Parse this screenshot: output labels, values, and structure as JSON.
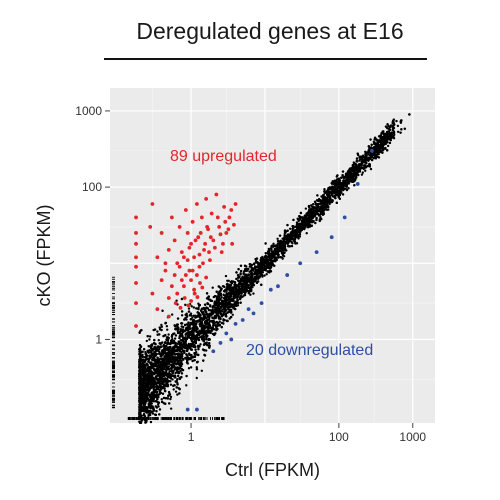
{
  "chart_data": {
    "type": "scatter",
    "title": "Deregulated genes at E16",
    "xlabel": "Ctrl (FPKM)",
    "ylabel": "cKO (FPKM)",
    "x_scale": "log10",
    "y_scale": "log10",
    "xlim": [
      0.08,
      2000
    ],
    "ylim": [
      0.08,
      2000
    ],
    "x_ticks": [
      1,
      100,
      1000
    ],
    "x_tick_labels": [
      "1",
      "100",
      "1000"
    ],
    "y_ticks": [
      1,
      100,
      1000
    ],
    "y_tick_labels": [
      "1",
      "100",
      "1000"
    ],
    "grid": true,
    "background": "#ebebeb",
    "annotations": [
      {
        "text": "89 upregulated",
        "color": "#e3262b",
        "x": 1.0,
        "y": 400
      },
      {
        "text": "20 downregulated",
        "color": "#2e4fa3",
        "x": 10,
        "y": 1.0
      }
    ],
    "series": [
      {
        "color": "#000000",
        "count": 7000
      },
      {
        "color": "#e3262b",
        "count": 89,
        "points": [
          [
            0.18,
            1.5
          ],
          [
            0.18,
            3.0
          ],
          [
            0.18,
            5.5
          ],
          [
            0.18,
            9.0
          ],
          [
            0.18,
            12
          ],
          [
            0.18,
            18
          ],
          [
            0.18,
            25
          ],
          [
            0.18,
            40
          ],
          [
            0.28,
            30
          ],
          [
            0.3,
            60
          ],
          [
            0.35,
            12
          ],
          [
            0.4,
            25
          ],
          [
            0.45,
            8
          ],
          [
            0.5,
            15
          ],
          [
            0.55,
            40
          ],
          [
            0.6,
            20
          ],
          [
            0.65,
            10
          ],
          [
            0.7,
            30
          ],
          [
            0.75,
            6
          ],
          [
            0.8,
            12
          ],
          [
            0.85,
            50
          ],
          [
            0.9,
            25
          ],
          [
            0.95,
            8
          ],
          [
            1.0,
            18
          ],
          [
            1.05,
            35
          ],
          [
            1.1,
            12
          ],
          [
            1.2,
            60
          ],
          [
            1.25,
            22
          ],
          [
            1.3,
            9
          ],
          [
            1.4,
            40
          ],
          [
            1.5,
            15
          ],
          [
            1.6,
            70
          ],
          [
            1.7,
            28
          ],
          [
            1.8,
            11
          ],
          [
            1.9,
            45
          ],
          [
            2.0,
            20
          ],
          [
            2.2,
            80
          ],
          [
            2.4,
            30
          ],
          [
            2.6,
            14
          ],
          [
            2.8,
            55
          ],
          [
            3.0,
            25
          ],
          [
            3.3,
            40
          ],
          [
            3.6,
            18
          ],
          [
            4.0,
            60
          ],
          [
            0.3,
            4
          ],
          [
            0.4,
            6
          ],
          [
            0.45,
            10
          ],
          [
            0.5,
            3.5
          ],
          [
            0.55,
            5
          ],
          [
            0.6,
            7
          ],
          [
            0.65,
            4
          ],
          [
            0.7,
            9
          ],
          [
            0.75,
            14
          ],
          [
            0.8,
            5
          ],
          [
            0.85,
            7
          ],
          [
            0.9,
            11
          ],
          [
            0.95,
            16
          ],
          [
            1.0,
            6
          ],
          [
            1.05,
            8
          ],
          [
            1.1,
            4.5
          ],
          [
            1.15,
            20
          ],
          [
            1.2,
            7
          ],
          [
            1.3,
            13
          ],
          [
            1.35,
            25
          ],
          [
            1.45,
            10
          ],
          [
            1.55,
            18
          ],
          [
            1.65,
            30
          ],
          [
            1.75,
            14
          ],
          [
            1.85,
            22
          ],
          [
            2.1,
            16
          ],
          [
            2.3,
            40
          ],
          [
            2.5,
            24
          ],
          [
            2.7,
            18
          ],
          [
            2.9,
            35
          ],
          [
            3.2,
            28
          ],
          [
            3.5,
            50
          ],
          [
            3.8,
            32
          ],
          [
            0.35,
            2.5
          ],
          [
            0.5,
            2.0
          ],
          [
            0.62,
            3.0
          ],
          [
            0.72,
            2.6
          ],
          [
            0.82,
            3.5
          ],
          [
            0.92,
            2.8
          ],
          [
            1.0,
            3.2
          ],
          [
            1.12,
            4.0
          ],
          [
            1.22,
            3.6
          ],
          [
            1.32,
            5.5
          ],
          [
            1.42,
            4.8
          ],
          [
            1.6,
            6.5
          ]
        ]
      },
      {
        "color": "#2e4fa3",
        "count": 20,
        "points": [
          [
            2.0,
            0.7
          ],
          [
            2.5,
            0.9
          ],
          [
            3.0,
            1.2
          ],
          [
            3.5,
            1.0
          ],
          [
            4.0,
            1.6
          ],
          [
            5.0,
            1.8
          ],
          [
            6.0,
            2.5
          ],
          [
            7.0,
            2.2
          ],
          [
            9.0,
            3.0
          ],
          [
            12,
            4.5
          ],
          [
            15,
            5.0
          ],
          [
            20,
            7.0
          ],
          [
            30,
            10
          ],
          [
            50,
            14
          ],
          [
            80,
            22
          ],
          [
            120,
            40
          ],
          [
            180,
            110
          ],
          [
            280,
            300
          ],
          [
            0.9,
            0.12
          ],
          [
            1.2,
            0.12
          ]
        ]
      }
    ]
  }
}
